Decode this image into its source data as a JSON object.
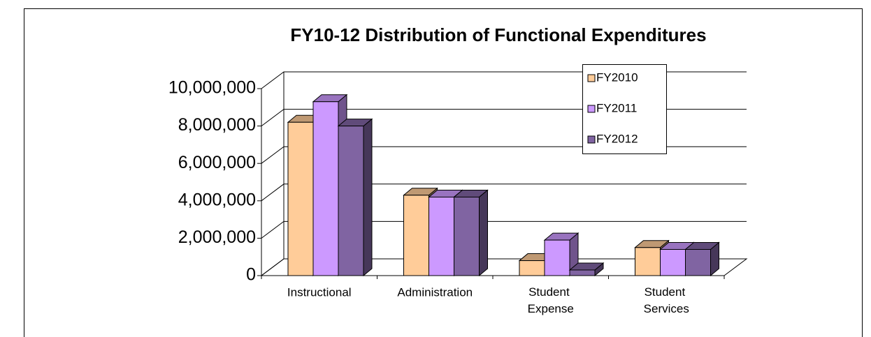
{
  "chart_data": {
    "type": "bar3d",
    "title": "FY10-12 Distribution of Functional Expenditures",
    "categories": [
      "Instructional",
      "Administration",
      "Student Expense",
      "Student Services"
    ],
    "series": [
      {
        "name": "FY2010",
        "color": "#ffcc99",
        "values": [
          8200000,
          4300000,
          800000,
          1500000
        ]
      },
      {
        "name": "FY2011",
        "color": "#cc99ff",
        "values": [
          9300000,
          4200000,
          1900000,
          1400000
        ]
      },
      {
        "name": "FY2012",
        "color": "#8064a2",
        "values": [
          8000000,
          4200000,
          300000,
          1400000
        ]
      }
    ],
    "ylim": [
      0,
      10000000
    ],
    "yticks": [
      0,
      {
        "value": 2000000,
        "label": "2,000,000"
      },
      {
        "value": 4000000,
        "label": "4,000,000"
      },
      {
        "value": 6000000,
        "label": "6,000,000"
      },
      {
        "value": 8000000,
        "label": "8,000,000"
      },
      {
        "value": 10000000,
        "label": "10,000,000"
      }
    ],
    "grid": true,
    "legend": "top-right"
  }
}
